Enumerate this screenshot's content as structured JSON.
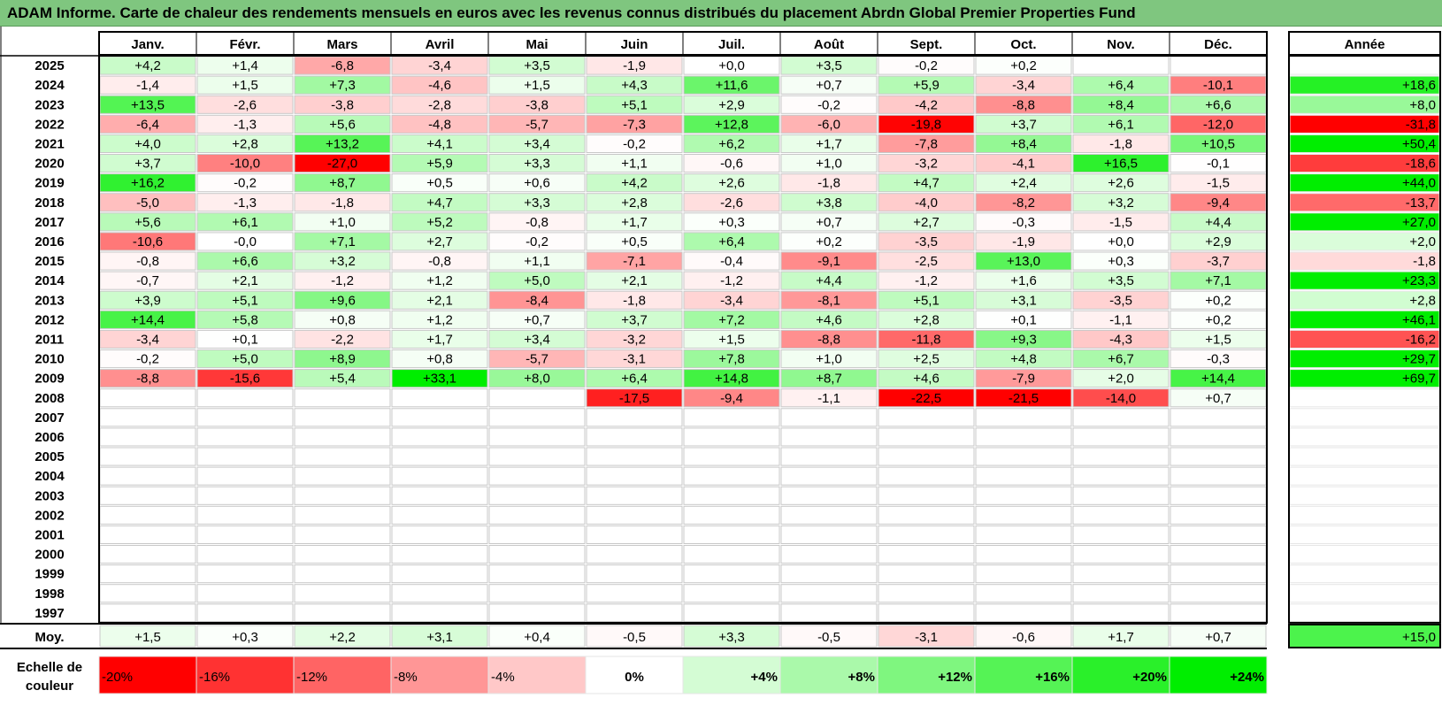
{
  "title": "ADAM Informe. Carte de chaleur des rendements mensuels en euros avec les revenus connus distribués du placement Abrdn Global Premier Properties Fund",
  "chart_data": {
    "type": "heatmap",
    "columns": [
      "Janv.",
      "Févr.",
      "Mars",
      "Avril",
      "Mai",
      "Juin",
      "Juil.",
      "Août",
      "Sept.",
      "Oct.",
      "Nov.",
      "Déc."
    ],
    "annual_header": "Année",
    "rows": [
      {
        "year": "2025",
        "values": [
          "+4,2",
          "+1,4",
          "-6,8",
          "-3,4",
          "+3,5",
          "-1,9",
          "+0,0",
          "+3,5",
          "-0,2",
          "+0,2",
          "",
          ""
        ],
        "annual": ""
      },
      {
        "year": "2024",
        "values": [
          "-1,4",
          "+1,5",
          "+7,3",
          "-4,6",
          "+1,5",
          "+4,3",
          "+11,6",
          "+0,7",
          "+5,9",
          "-3,4",
          "+6,4",
          "-10,1"
        ],
        "annual": "+18,6"
      },
      {
        "year": "2023",
        "values": [
          "+13,5",
          "-2,6",
          "-3,8",
          "-2,8",
          "-3,8",
          "+5,1",
          "+2,9",
          "-0,2",
          "-4,2",
          "-8,8",
          "+8,4",
          "+6,6"
        ],
        "annual": "+8,0"
      },
      {
        "year": "2022",
        "values": [
          "-6,4",
          "-1,3",
          "+5,6",
          "-4,8",
          "-5,7",
          "-7,3",
          "+12,8",
          "-6,0",
          "-19,8",
          "+3,7",
          "+6,1",
          "-12,0"
        ],
        "annual": "-31,8"
      },
      {
        "year": "2021",
        "values": [
          "+4,0",
          "+2,8",
          "+13,2",
          "+4,1",
          "+3,4",
          "-0,2",
          "+6,2",
          "+1,7",
          "-7,8",
          "+8,4",
          "-1,8",
          "+10,5"
        ],
        "annual": "+50,4"
      },
      {
        "year": "2020",
        "values": [
          "+3,7",
          "-10,0",
          "-27,0",
          "+5,9",
          "+3,3",
          "+1,1",
          "-0,6",
          "+1,0",
          "-3,2",
          "-4,1",
          "+16,5",
          "-0,1"
        ],
        "annual": "-18,6"
      },
      {
        "year": "2019",
        "values": [
          "+16,2",
          "-0,2",
          "+8,7",
          "+0,5",
          "+0,6",
          "+4,2",
          "+2,6",
          "-1,8",
          "+4,7",
          "+2,4",
          "+2,6",
          "-1,5"
        ],
        "annual": "+44,0"
      },
      {
        "year": "2018",
        "values": [
          "-5,0",
          "-1,3",
          "-1,8",
          "+4,7",
          "+3,3",
          "+2,8",
          "-2,6",
          "+3,8",
          "-4,0",
          "-8,2",
          "+3,2",
          "-9,4"
        ],
        "annual": "-13,7"
      },
      {
        "year": "2017",
        "values": [
          "+5,6",
          "+6,1",
          "+1,0",
          "+5,2",
          "-0,8",
          "+1,7",
          "+0,3",
          "+0,7",
          "+2,7",
          "-0,3",
          "-1,5",
          "+4,4"
        ],
        "annual": "+27,0"
      },
      {
        "year": "2016",
        "values": [
          "-10,6",
          "-0,0",
          "+7,1",
          "+2,7",
          "-0,2",
          "+0,5",
          "+6,4",
          "+0,2",
          "-3,5",
          "-1,9",
          "+0,0",
          "+2,9"
        ],
        "annual": "+2,0"
      },
      {
        "year": "2015",
        "values": [
          "-0,8",
          "+6,6",
          "+3,2",
          "-0,8",
          "+1,1",
          "-7,1",
          "-0,4",
          "-9,1",
          "-2,5",
          "+13,0",
          "+0,3",
          "-3,7"
        ],
        "annual": "-1,8"
      },
      {
        "year": "2014",
        "values": [
          "-0,7",
          "+2,1",
          "-1,2",
          "+1,2",
          "+5,0",
          "+2,1",
          "-1,2",
          "+4,4",
          "-1,2",
          "+1,6",
          "+3,5",
          "+7,1"
        ],
        "annual": "+23,3"
      },
      {
        "year": "2013",
        "values": [
          "+3,9",
          "+5,1",
          "+9,6",
          "+2,1",
          "-8,4",
          "-1,8",
          "-3,4",
          "-8,1",
          "+5,1",
          "+3,1",
          "-3,5",
          "+0,2"
        ],
        "annual": "+2,8"
      },
      {
        "year": "2012",
        "values": [
          "+14,4",
          "+5,8",
          "+0,8",
          "+1,2",
          "+0,7",
          "+3,7",
          "+7,2",
          "+4,6",
          "+2,8",
          "+0,1",
          "-1,1",
          "+0,2"
        ],
        "annual": "+46,1"
      },
      {
        "year": "2011",
        "values": [
          "-3,4",
          "+0,1",
          "-2,2",
          "+1,7",
          "+3,4",
          "-3,2",
          "+1,5",
          "-8,8",
          "-11,8",
          "+9,3",
          "-4,3",
          "+1,5"
        ],
        "annual": "-16,2"
      },
      {
        "year": "2010",
        "values": [
          "-0,2",
          "+5,0",
          "+8,9",
          "+0,8",
          "-5,7",
          "-3,1",
          "+7,8",
          "+1,0",
          "+2,5",
          "+4,8",
          "+6,7",
          "-0,3"
        ],
        "annual": "+29,7"
      },
      {
        "year": "2009",
        "values": [
          "-8,8",
          "-15,6",
          "+5,4",
          "+33,1",
          "+8,0",
          "+6,4",
          "+14,8",
          "+8,7",
          "+4,6",
          "-7,9",
          "+2,0",
          "+14,4"
        ],
        "annual": "+69,7"
      },
      {
        "year": "2008",
        "values": [
          "",
          "",
          "",
          "",
          "",
          "-17,5",
          "-9,4",
          "-1,1",
          "-22,5",
          "-21,5",
          "-14,0",
          "+0,7"
        ],
        "annual": ""
      },
      {
        "year": "2007",
        "values": [
          "",
          "",
          "",
          "",
          "",
          "",
          "",
          "",
          "",
          "",
          "",
          ""
        ],
        "annual": ""
      },
      {
        "year": "2006",
        "values": [
          "",
          "",
          "",
          "",
          "",
          "",
          "",
          "",
          "",
          "",
          "",
          ""
        ],
        "annual": ""
      },
      {
        "year": "2005",
        "values": [
          "",
          "",
          "",
          "",
          "",
          "",
          "",
          "",
          "",
          "",
          "",
          ""
        ],
        "annual": ""
      },
      {
        "year": "2004",
        "values": [
          "",
          "",
          "",
          "",
          "",
          "",
          "",
          "",
          "",
          "",
          "",
          ""
        ],
        "annual": ""
      },
      {
        "year": "2003",
        "values": [
          "",
          "",
          "",
          "",
          "",
          "",
          "",
          "",
          "",
          "",
          "",
          ""
        ],
        "annual": ""
      },
      {
        "year": "2002",
        "values": [
          "",
          "",
          "",
          "",
          "",
          "",
          "",
          "",
          "",
          "",
          "",
          ""
        ],
        "annual": ""
      },
      {
        "year": "2001",
        "values": [
          "",
          "",
          "",
          "",
          "",
          "",
          "",
          "",
          "",
          "",
          "",
          ""
        ],
        "annual": ""
      },
      {
        "year": "2000",
        "values": [
          "",
          "",
          "",
          "",
          "",
          "",
          "",
          "",
          "",
          "",
          "",
          ""
        ],
        "annual": ""
      },
      {
        "year": "1999",
        "values": [
          "",
          "",
          "",
          "",
          "",
          "",
          "",
          "",
          "",
          "",
          "",
          ""
        ],
        "annual": ""
      },
      {
        "year": "1998",
        "values": [
          "",
          "",
          "",
          "",
          "",
          "",
          "",
          "",
          "",
          "",
          "",
          ""
        ],
        "annual": ""
      },
      {
        "year": "1997",
        "values": [
          "",
          "",
          "",
          "",
          "",
          "",
          "",
          "",
          "",
          "",
          "",
          ""
        ],
        "annual": ""
      }
    ],
    "average": {
      "label": "Moy.",
      "values": [
        "+1,5",
        "+0,3",
        "+2,2",
        "+3,1",
        "+0,4",
        "-0,5",
        "+3,3",
        "-0,5",
        "-3,1",
        "-0,6",
        "+1,7",
        "+0,7"
      ],
      "annual": "+15,0"
    },
    "scale": {
      "label_line1": "Echelle de",
      "label_line2": "couleur",
      "entries": [
        {
          "label": "-20%",
          "color": "#ff0000"
        },
        {
          "label": "-16%",
          "color": "#ff3232"
        },
        {
          "label": "-12%",
          "color": "#ff6464"
        },
        {
          "label": "-8%",
          "color": "#ff9696"
        },
        {
          "label": "-4%",
          "color": "#ffc8c8"
        },
        {
          "label": "0%",
          "color": "#ffffff"
        },
        {
          "label": "+4%",
          "color": "#d4fcd4"
        },
        {
          "label": "+8%",
          "color": "#aaf9aa"
        },
        {
          "label": "+12%",
          "color": "#7ff67f"
        },
        {
          "label": "+16%",
          "color": "#55f355"
        },
        {
          "label": "+20%",
          "color": "#2af02a"
        },
        {
          "label": "+24%",
          "color": "#00ee00"
        }
      ]
    }
  }
}
